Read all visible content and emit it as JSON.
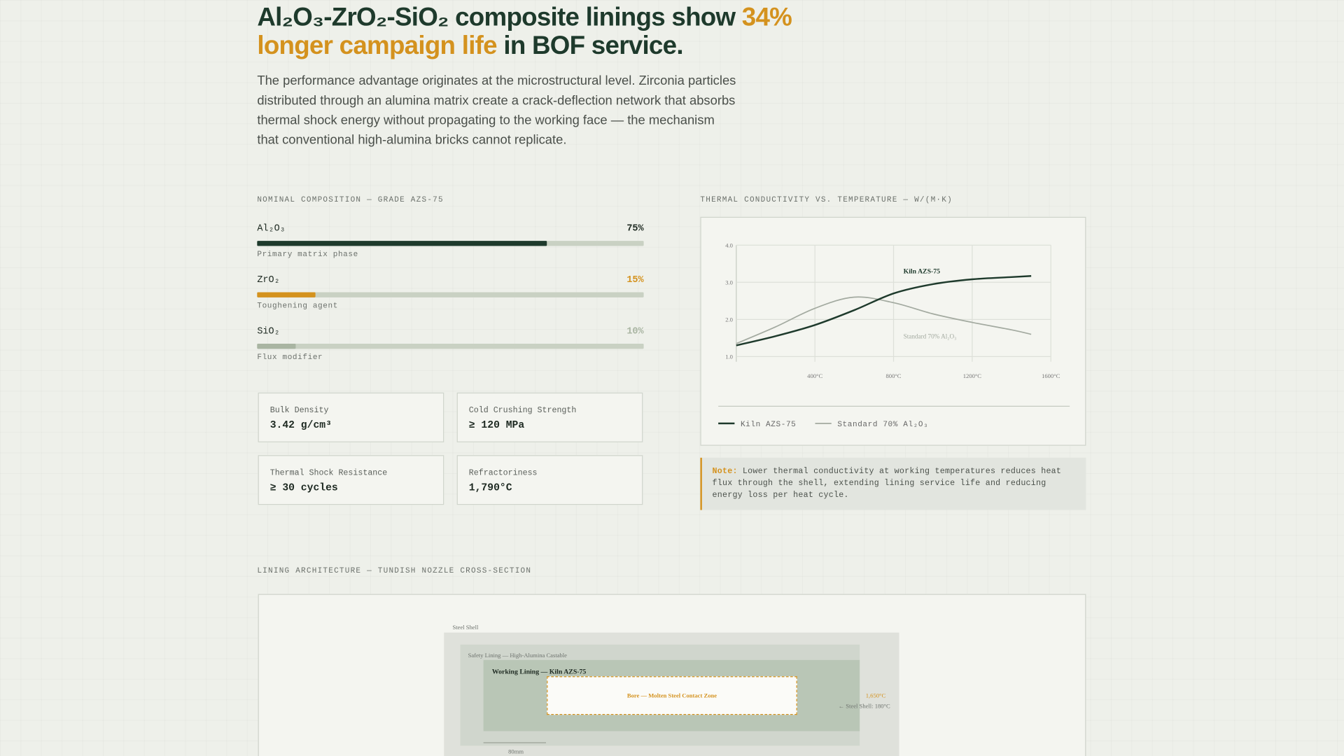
{
  "header": {
    "title_before": "Al₂O₃-ZrO₂-SiO₂ composite linings show ",
    "title_highlight": "34% longer campaign life",
    "title_after": " in BOF service.",
    "lead": "The performance advantage originates at the microstructural level. Zirconia particles distributed through an alumina matrix create a crack-deflection network that absorbs thermal shock energy without propagating to the working face — the mechanism that conventional high-alumina bricks cannot replicate."
  },
  "composition": {
    "title": "NOMINAL COMPOSITION — GRADE AZS-75",
    "xlim": [
      0,
      100
    ],
    "items": [
      {
        "name": "Al₂O₃",
        "value": 75,
        "value_label": "75%",
        "color": "#1e3a2c",
        "note": "Primary matrix phase"
      },
      {
        "name": "ZrO₂",
        "value": 15,
        "value_label": "15%",
        "color": "#d4921e",
        "note": "Toughening agent"
      },
      {
        "name": "SiO₂",
        "value": 10,
        "value_label": "10%",
        "color": "#a9b5a2",
        "note": "Flux modifier"
      }
    ]
  },
  "properties": [
    {
      "label": "Bulk Density",
      "value": "3.42 g/cm³"
    },
    {
      "label": "Cold Crushing Strength",
      "value": "≥ 120 MPa"
    },
    {
      "label": "Thermal Shock Resistance",
      "value": "≥ 30 cycles"
    },
    {
      "label": "Refractoriness",
      "value": "1,790°C"
    }
  ],
  "chart_data": {
    "type": "line",
    "title": "THERMAL CONDUCTIVITY VS. TEMPERATURE — W/(M·K)",
    "x": [
      0,
      200,
      400,
      600,
      800,
      1000,
      1200,
      1400,
      1500
    ],
    "xlim": [
      0,
      1600
    ],
    "xticks": [
      {
        "value": 400,
        "label": "400°C"
      },
      {
        "value": 800,
        "label": "800°C"
      },
      {
        "value": 1200,
        "label": "1200°C"
      },
      {
        "value": 1600,
        "label": "1600°C"
      }
    ],
    "ylim": [
      1,
      4
    ],
    "yticks": [
      {
        "value": 1,
        "label": "1.0"
      },
      {
        "value": 2,
        "label": "2.0"
      },
      {
        "value": 3,
        "label": "3.0"
      },
      {
        "value": 4,
        "label": "4.0"
      }
    ],
    "grid": true,
    "series": [
      {
        "name": "Kiln AZS-75",
        "color": "#1e3a2c",
        "values": [
          1.3,
          1.55,
          1.85,
          2.25,
          2.7,
          2.95,
          3.08,
          3.14,
          3.17
        ]
      },
      {
        "name": "Standard 70% Al₂O₃",
        "color": "#a3aaa0",
        "values": [
          1.35,
          1.8,
          2.3,
          2.6,
          2.45,
          2.15,
          1.92,
          1.72,
          1.6
        ]
      }
    ]
  },
  "note": {
    "label": "Note:",
    "text": " Lower thermal conductivity at working temperatures reduces heat flux through the shell, extending lining service life and reducing energy loss per heat cycle."
  },
  "diagram": {
    "title": "LINING ARCHITECTURE — TUNDISH NOZZLE CROSS-SECTION",
    "shell": "Steel Shell",
    "safety": "Safety Lining — High-Alumina Castable",
    "working": "Working Lining — Kiln AZS-75",
    "bore": "Bore — Molten Steel Contact Zone",
    "hot_temp": "1,650°C",
    "shell_temp": "← Steel Shell: 180°C",
    "scale": "80mm"
  }
}
